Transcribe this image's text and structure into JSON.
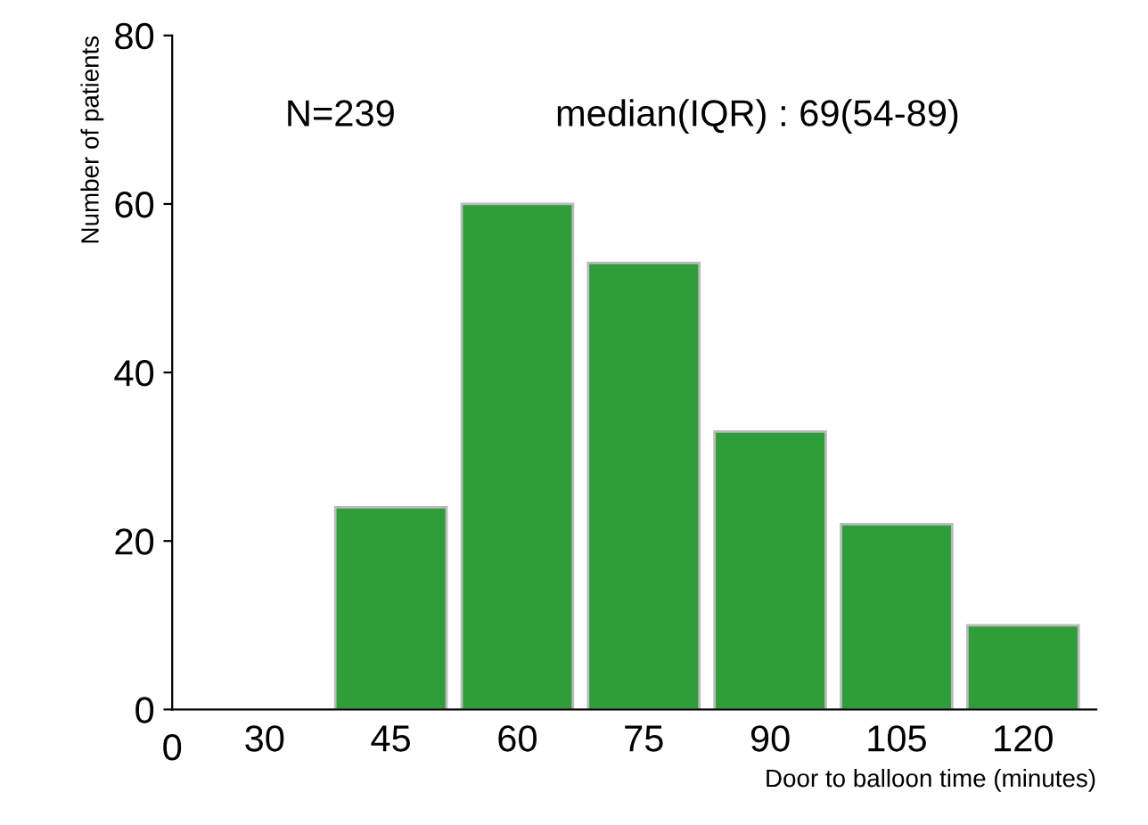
{
  "chart_data": {
    "type": "bar",
    "xlabel": "Door to balloon time (minutes)",
    "ylabel": "Number of patients",
    "categories": [
      "30",
      "45",
      "60",
      "75",
      "90",
      "105",
      "120"
    ],
    "values": [
      0,
      24,
      60,
      53,
      33,
      22,
      10
    ],
    "color": "#2f9e3a",
    "ylim": [
      0,
      80
    ],
    "yticks": [
      0,
      20,
      40,
      60,
      80
    ],
    "grid": false,
    "legend": false,
    "annotations": [
      "0",
      "N=239",
      "median(IQR) : 69(54-89)"
    ]
  }
}
